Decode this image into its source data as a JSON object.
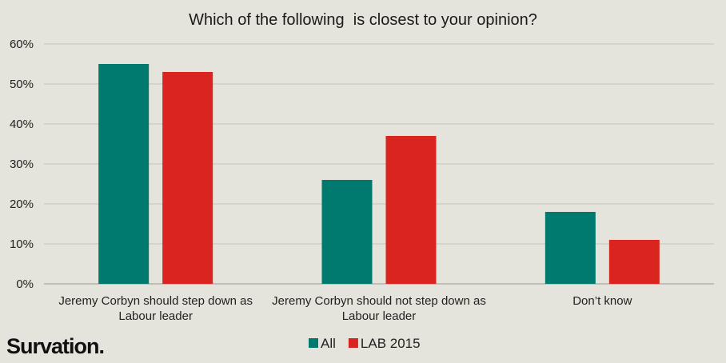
{
  "brand": {
    "name": "Survation."
  },
  "chart_data": {
    "type": "bar",
    "title": "Which of the following  is closest to your opinion?",
    "categories": [
      [
        "Jeremy Corbyn should step down as",
        "Labour leader"
      ],
      [
        "Jeremy Corbyn should not step down as",
        "Labour leader"
      ],
      [
        "Don’t know"
      ]
    ],
    "series": [
      {
        "name": "All",
        "color": "#007a6e",
        "values": [
          55,
          26,
          18
        ]
      },
      {
        "name": "LAB 2015",
        "color": "#d9241f",
        "values": [
          53,
          37,
          11
        ]
      }
    ],
    "ylim": [
      0,
      60
    ],
    "yticks": [
      0,
      10,
      20,
      30,
      40,
      50,
      60
    ],
    "tick_suffix": "%",
    "grid": true,
    "legend_position": "bottom-center"
  }
}
